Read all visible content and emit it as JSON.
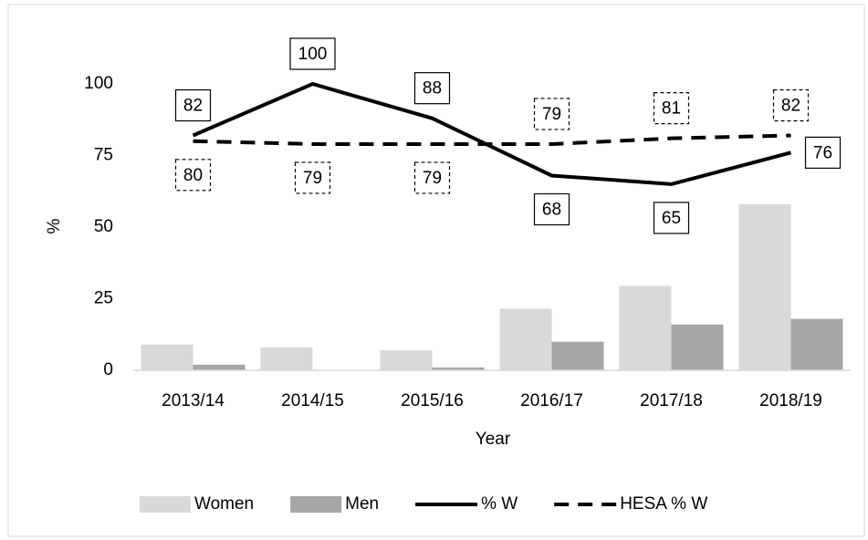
{
  "chart_data": {
    "type": "bar",
    "x_label": "Year",
    "y_label": "%",
    "categories": [
      "2013/14",
      "2014/15",
      "2015/16",
      "2016/17",
      "2017/18",
      "2018/19"
    ],
    "series": [
      {
        "name": "Women",
        "type": "bar",
        "color": "#d9d9d9",
        "values": [
          9,
          8,
          7,
          21.5,
          29.5,
          58
        ]
      },
      {
        "name": "Men",
        "type": "bar",
        "color": "#a6a6a6",
        "values": [
          2,
          0,
          1,
          10,
          16,
          18
        ]
      },
      {
        "name": "% W",
        "type": "line",
        "dashed": false,
        "color": "#000000",
        "values": [
          82,
          100,
          88,
          68,
          65,
          76
        ]
      },
      {
        "name": "HESA % W",
        "type": "line",
        "dashed": true,
        "color": "#000000",
        "values": [
          80,
          79,
          79,
          79,
          81,
          82
        ]
      }
    ],
    "ylim": [
      0,
      100
    ],
    "yticks": [
      0,
      25,
      50,
      75,
      100
    ],
    "grid": false,
    "legend": "bottom"
  }
}
